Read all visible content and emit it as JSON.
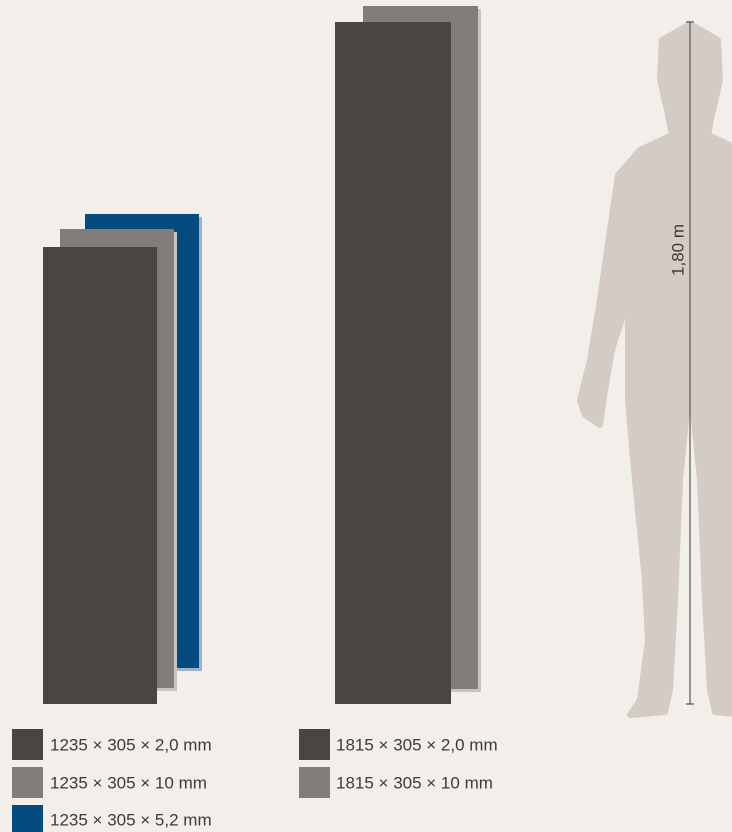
{
  "figure": {
    "height_label": "1,80 m"
  },
  "legend": {
    "groups": [
      {
        "items": [
          {
            "label": "1235 × 305 × 2,0 mm",
            "color": "#4a4542"
          },
          {
            "label": "1235 × 305 × 10 mm",
            "color": "#827c7a"
          },
          {
            "label": "1235 × 305 × 5,2 mm",
            "color": "#054b7f"
          }
        ]
      },
      {
        "items": [
          {
            "label": "1815 × 305 × 2,0 mm",
            "color": "#4a4542"
          },
          {
            "label": "1815 × 305 × 10 mm",
            "color": "#827c7a"
          }
        ]
      }
    ]
  }
}
